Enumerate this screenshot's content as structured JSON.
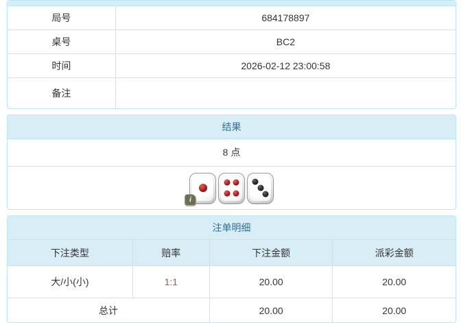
{
  "colors": {
    "accent_bg": "#d9edf7",
    "accent_border": "#bce8f1",
    "heading_text": "#31708f",
    "odds_red": "#e03e3e",
    "inner_border": "#dddddd",
    "text": "#333333"
  },
  "info_table": {
    "rows": [
      {
        "label": "局号",
        "value": "684178897"
      },
      {
        "label": "桌号",
        "value": "BC2"
      },
      {
        "label": "时间",
        "value": "2026-02-12 23:00:58"
      },
      {
        "label": "备注",
        "value": ""
      }
    ]
  },
  "result_panel": {
    "title": "结果",
    "points": "8 点",
    "dice": [
      {
        "value": 1,
        "color": "red"
      },
      {
        "value": 4,
        "color": "red"
      },
      {
        "value": 3,
        "color": "black"
      }
    ],
    "info_icon": "i"
  },
  "bets_panel": {
    "title": "注单明细",
    "columns": [
      "下注类型",
      "赔率",
      "下注金额",
      "派彩金额"
    ],
    "rows": [
      {
        "bet_type": "大/小(小)",
        "odds": "1:1",
        "bet_amount": "20.00",
        "payout_amount": "20.00"
      }
    ],
    "total": {
      "label": "总计",
      "bet_amount": "20.00",
      "payout_amount": "20.00"
    }
  }
}
